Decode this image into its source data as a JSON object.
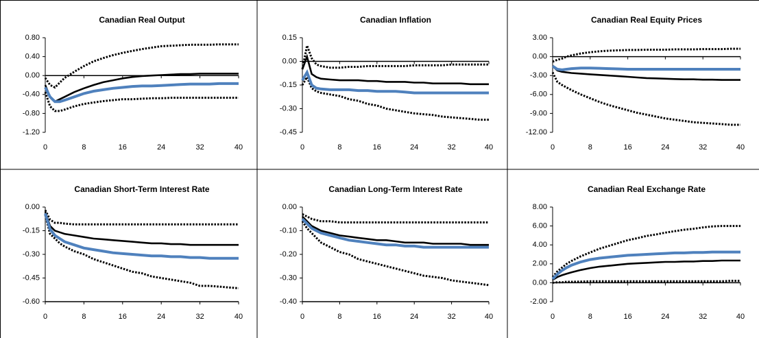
{
  "chart_data": [
    {
      "type": "line",
      "title": "Canadian Real Output",
      "x": [
        0,
        1,
        2,
        3,
        4,
        6,
        8,
        10,
        12,
        14,
        16,
        18,
        20,
        22,
        24,
        26,
        28,
        30,
        32,
        34,
        36,
        38,
        40
      ],
      "xlim": [
        0,
        40
      ],
      "xticks": [
        0,
        8,
        16,
        24,
        32,
        40
      ],
      "ylim": [
        -1.2,
        0.8
      ],
      "yticks": [
        {
          "value": -1.2,
          "label": "-1.20"
        },
        {
          "value": -0.8,
          "label": "-0.80"
        },
        {
          "value": -0.4,
          "label": "-0.40"
        },
        {
          "value": 0,
          "label": "0.00"
        },
        {
          "value": 0.4,
          "label": "0.40"
        },
        {
          "value": 0.8,
          "label": "0.80"
        }
      ],
      "series": [
        {
          "color": "#000000",
          "dash": "dotted",
          "values": [
            -0.05,
            -0.2,
            -0.25,
            -0.15,
            -0.05,
            0.08,
            0.2,
            0.3,
            0.37,
            0.43,
            0.48,
            0.52,
            0.56,
            0.59,
            0.62,
            0.63,
            0.64,
            0.65,
            0.65,
            0.65,
            0.66,
            0.66,
            0.66
          ]
        },
        {
          "color": "#000000",
          "dash": "dotted",
          "values": [
            -0.35,
            -0.65,
            -0.75,
            -0.75,
            -0.72,
            -0.65,
            -0.6,
            -0.57,
            -0.54,
            -0.52,
            -0.5,
            -0.5,
            -0.49,
            -0.48,
            -0.48,
            -0.47,
            -0.47,
            -0.47,
            -0.47,
            -0.47,
            -0.47,
            -0.47,
            -0.47
          ]
        },
        {
          "color": "#000000",
          "dash": "solid",
          "values": [
            -0.2,
            -0.45,
            -0.55,
            -0.5,
            -0.45,
            -0.35,
            -0.27,
            -0.2,
            -0.14,
            -0.1,
            -0.06,
            -0.03,
            -0.01,
            0,
            0.01,
            0.02,
            0.03,
            0.03,
            0.04,
            0.04,
            0.04,
            0.04,
            0.04
          ]
        },
        {
          "color": "#4f81bd",
          "dash": "solid",
          "values": [
            -0.25,
            -0.45,
            -0.55,
            -0.55,
            -0.52,
            -0.45,
            -0.38,
            -0.33,
            -0.3,
            -0.27,
            -0.25,
            -0.23,
            -0.22,
            -0.22,
            -0.21,
            -0.2,
            -0.19,
            -0.18,
            -0.18,
            -0.18,
            -0.17,
            -0.17,
            -0.17
          ]
        }
      ]
    },
    {
      "type": "line",
      "title": "Canadian Inflation",
      "x": [
        0,
        1,
        2,
        3,
        4,
        6,
        8,
        10,
        12,
        14,
        16,
        18,
        20,
        22,
        24,
        26,
        28,
        30,
        32,
        34,
        36,
        38,
        40
      ],
      "xlim": [
        0,
        40
      ],
      "xticks": [
        0,
        8,
        16,
        24,
        32,
        40
      ],
      "ylim": [
        -0.45,
        0.15
      ],
      "yticks": [
        {
          "value": -0.45,
          "label": "-0.45"
        },
        {
          "value": -0.3,
          "label": "-0.30"
        },
        {
          "value": -0.15,
          "label": "-0.15"
        },
        {
          "value": 0,
          "label": "0.00"
        },
        {
          "value": 0.15,
          "label": "0.15"
        }
      ],
      "series": [
        {
          "color": "#000000",
          "dash": "dotted",
          "values": [
            -0.05,
            0.1,
            0.02,
            -0.02,
            -0.03,
            -0.04,
            -0.04,
            -0.035,
            -0.035,
            -0.03,
            -0.03,
            -0.03,
            -0.03,
            -0.03,
            -0.025,
            -0.025,
            -0.025,
            -0.025,
            -0.02,
            -0.02,
            -0.02,
            -0.02,
            -0.02
          ]
        },
        {
          "color": "#000000",
          "dash": "dotted",
          "values": [
            -0.15,
            -0.1,
            -0.17,
            -0.19,
            -0.2,
            -0.21,
            -0.22,
            -0.24,
            -0.25,
            -0.27,
            -0.28,
            -0.3,
            -0.31,
            -0.32,
            -0.33,
            -0.335,
            -0.34,
            -0.35,
            -0.355,
            -0.36,
            -0.365,
            -0.37,
            -0.37
          ]
        },
        {
          "color": "#000000",
          "dash": "solid",
          "values": [
            -0.05,
            0.03,
            -0.08,
            -0.1,
            -0.11,
            -0.115,
            -0.12,
            -0.12,
            -0.12,
            -0.125,
            -0.125,
            -0.13,
            -0.13,
            -0.13,
            -0.135,
            -0.135,
            -0.14,
            -0.14,
            -0.14,
            -0.14,
            -0.145,
            -0.145,
            -0.145
          ]
        },
        {
          "color": "#4f81bd",
          "dash": "solid",
          "values": [
            -0.12,
            -0.07,
            -0.15,
            -0.17,
            -0.175,
            -0.18,
            -0.18,
            -0.18,
            -0.185,
            -0.185,
            -0.19,
            -0.19,
            -0.19,
            -0.195,
            -0.2,
            -0.2,
            -0.2,
            -0.2,
            -0.2,
            -0.2,
            -0.2,
            -0.2,
            -0.2
          ]
        }
      ]
    },
    {
      "type": "line",
      "title": "Canadian Real Equity Prices",
      "x": [
        0,
        1,
        2,
        3,
        4,
        6,
        8,
        10,
        12,
        14,
        16,
        18,
        20,
        22,
        24,
        26,
        28,
        30,
        32,
        34,
        36,
        38,
        40
      ],
      "xlim": [
        0,
        40
      ],
      "xticks": [
        0,
        8,
        16,
        24,
        32,
        40
      ],
      "ylim": [
        -12,
        3
      ],
      "yticks": [
        {
          "value": -12,
          "label": "-12.00"
        },
        {
          "value": -9,
          "label": "-9.00"
        },
        {
          "value": -6,
          "label": "-6.00"
        },
        {
          "value": -3,
          "label": "-3.00"
        },
        {
          "value": 0,
          "label": "0.00"
        },
        {
          "value": 3,
          "label": "3.00"
        }
      ],
      "series": [
        {
          "color": "#000000",
          "dash": "dotted",
          "values": [
            -0.8,
            -0.5,
            -0.3,
            0,
            0.2,
            0.5,
            0.7,
            0.85,
            0.95,
            1.0,
            1.05,
            1.05,
            1.1,
            1.1,
            1.1,
            1.15,
            1.15,
            1.15,
            1.2,
            1.2,
            1.2,
            1.25,
            1.25
          ]
        },
        {
          "color": "#000000",
          "dash": "dotted",
          "values": [
            -2.5,
            -4,
            -4.5,
            -4.9,
            -5.3,
            -6,
            -6.6,
            -7.2,
            -7.7,
            -8.1,
            -8.5,
            -8.9,
            -9.2,
            -9.5,
            -9.8,
            -10,
            -10.2,
            -10.4,
            -10.5,
            -10.6,
            -10.7,
            -10.8,
            -10.8
          ]
        },
        {
          "color": "#000000",
          "dash": "solid",
          "values": [
            -1.5,
            -2.2,
            -2.4,
            -2.5,
            -2.6,
            -2.7,
            -2.8,
            -2.9,
            -3.0,
            -3.1,
            -3.2,
            -3.3,
            -3.4,
            -3.45,
            -3.5,
            -3.55,
            -3.6,
            -3.6,
            -3.65,
            -3.65,
            -3.7,
            -3.7,
            -3.7
          ]
        },
        {
          "color": "#4f81bd",
          "dash": "solid",
          "values": [
            -1.5,
            -2.0,
            -2.1,
            -2.0,
            -1.9,
            -1.8,
            -1.8,
            -1.85,
            -1.9,
            -1.95,
            -2.0,
            -2.0,
            -2.0,
            -2.0,
            -2.0,
            -2.0,
            -2.0,
            -2.0,
            -2.0,
            -2.0,
            -2.0,
            -2.0,
            -2.0
          ]
        }
      ]
    },
    {
      "type": "line",
      "title": "Canadian Short-Term Interest Rate",
      "x": [
        0,
        1,
        2,
        3,
        4,
        6,
        8,
        10,
        12,
        14,
        16,
        18,
        20,
        22,
        24,
        26,
        28,
        30,
        32,
        34,
        36,
        38,
        40
      ],
      "xlim": [
        0,
        40
      ],
      "xticks": [
        0,
        8,
        16,
        24,
        32,
        40
      ],
      "ylim": [
        -0.6,
        0
      ],
      "yticks": [
        {
          "value": -0.6,
          "label": "-0.60"
        },
        {
          "value": -0.45,
          "label": "-0.45"
        },
        {
          "value": -0.3,
          "label": "-0.30"
        },
        {
          "value": -0.15,
          "label": "-0.15"
        },
        {
          "value": 0,
          "label": "0.00"
        }
      ],
      "series": [
        {
          "color": "#000000",
          "dash": "dotted",
          "values": [
            -0.02,
            -0.08,
            -0.1,
            -0.1,
            -0.105,
            -0.11,
            -0.11,
            -0.11,
            -0.11,
            -0.11,
            -0.11,
            -0.11,
            -0.11,
            -0.11,
            -0.11,
            -0.11,
            -0.11,
            -0.11,
            -0.11,
            -0.11,
            -0.11,
            -0.11,
            -0.11
          ]
        },
        {
          "color": "#000000",
          "dash": "dotted",
          "values": [
            -0.05,
            -0.17,
            -0.2,
            -0.23,
            -0.25,
            -0.28,
            -0.3,
            -0.33,
            -0.35,
            -0.37,
            -0.39,
            -0.41,
            -0.42,
            -0.44,
            -0.45,
            -0.46,
            -0.47,
            -0.48,
            -0.5,
            -0.5,
            -0.505,
            -0.51,
            -0.515
          ]
        },
        {
          "color": "#000000",
          "dash": "solid",
          "values": [
            -0.03,
            -0.12,
            -0.15,
            -0.16,
            -0.17,
            -0.18,
            -0.19,
            -0.2,
            -0.205,
            -0.21,
            -0.215,
            -0.22,
            -0.225,
            -0.23,
            -0.23,
            -0.235,
            -0.235,
            -0.24,
            -0.24,
            -0.24,
            -0.24,
            -0.24,
            -0.24
          ]
        },
        {
          "color": "#4f81bd",
          "dash": "solid",
          "values": [
            -0.04,
            -0.14,
            -0.18,
            -0.2,
            -0.22,
            -0.24,
            -0.26,
            -0.27,
            -0.28,
            -0.29,
            -0.295,
            -0.3,
            -0.305,
            -0.31,
            -0.31,
            -0.315,
            -0.315,
            -0.32,
            -0.32,
            -0.325,
            -0.325,
            -0.325,
            -0.325
          ]
        }
      ]
    },
    {
      "type": "line",
      "title": "Canadian Long-Term Interest Rate",
      "x": [
        0,
        1,
        2,
        3,
        4,
        6,
        8,
        10,
        12,
        14,
        16,
        18,
        20,
        22,
        24,
        26,
        28,
        30,
        32,
        34,
        36,
        38,
        40
      ],
      "xlim": [
        0,
        40
      ],
      "xticks": [
        0,
        8,
        16,
        24,
        32,
        40
      ],
      "ylim": [
        -0.4,
        0
      ],
      "yticks": [
        {
          "value": -0.4,
          "label": "-0.40"
        },
        {
          "value": -0.3,
          "label": "-0.30"
        },
        {
          "value": -0.2,
          "label": "-0.20"
        },
        {
          "value": -0.1,
          "label": "-0.10"
        },
        {
          "value": 0,
          "label": "0.00"
        }
      ],
      "series": [
        {
          "color": "#000000",
          "dash": "dotted",
          "values": [
            -0.03,
            -0.04,
            -0.05,
            -0.055,
            -0.06,
            -0.06,
            -0.065,
            -0.065,
            -0.065,
            -0.065,
            -0.065,
            -0.065,
            -0.065,
            -0.065,
            -0.065,
            -0.065,
            -0.065,
            -0.065,
            -0.065,
            -0.065,
            -0.065,
            -0.065,
            -0.065
          ]
        },
        {
          "color": "#000000",
          "dash": "dotted",
          "values": [
            -0.06,
            -0.09,
            -0.11,
            -0.13,
            -0.15,
            -0.17,
            -0.19,
            -0.2,
            -0.22,
            -0.23,
            -0.24,
            -0.25,
            -0.26,
            -0.27,
            -0.28,
            -0.29,
            -0.295,
            -0.3,
            -0.31,
            -0.315,
            -0.32,
            -0.325,
            -0.33
          ]
        },
        {
          "color": "#000000",
          "dash": "solid",
          "values": [
            -0.04,
            -0.06,
            -0.08,
            -0.09,
            -0.1,
            -0.11,
            -0.12,
            -0.125,
            -0.13,
            -0.135,
            -0.14,
            -0.14,
            -0.145,
            -0.15,
            -0.15,
            -0.15,
            -0.155,
            -0.155,
            -0.155,
            -0.155,
            -0.16,
            -0.16,
            -0.16
          ]
        },
        {
          "color": "#4f81bd",
          "dash": "solid",
          "values": [
            -0.05,
            -0.07,
            -0.09,
            -0.1,
            -0.11,
            -0.12,
            -0.13,
            -0.14,
            -0.145,
            -0.15,
            -0.155,
            -0.16,
            -0.16,
            -0.165,
            -0.165,
            -0.17,
            -0.17,
            -0.17,
            -0.17,
            -0.17,
            -0.17,
            -0.17,
            -0.17
          ]
        }
      ]
    },
    {
      "type": "line",
      "title": "Canadian Real Exchange Rate",
      "x": [
        0,
        1,
        2,
        3,
        4,
        6,
        8,
        10,
        12,
        14,
        16,
        18,
        20,
        22,
        24,
        26,
        28,
        30,
        32,
        34,
        36,
        38,
        40
      ],
      "xlim": [
        0,
        40
      ],
      "xticks": [
        0,
        8,
        16,
        24,
        32,
        40
      ],
      "ylim": [
        -2,
        8
      ],
      "yticks": [
        {
          "value": -2,
          "label": "-2.00"
        },
        {
          "value": 0,
          "label": "0.00"
        },
        {
          "value": 2,
          "label": "2.00"
        },
        {
          "value": 4,
          "label": "4.00"
        },
        {
          "value": 6,
          "label": "6.00"
        },
        {
          "value": 8,
          "label": "8.00"
        }
      ],
      "series": [
        {
          "color": "#000000",
          "dash": "dotted",
          "values": [
            0.6,
            1.2,
            1.6,
            2.0,
            2.3,
            2.8,
            3.2,
            3.6,
            3.9,
            4.2,
            4.5,
            4.7,
            4.95,
            5.1,
            5.3,
            5.45,
            5.6,
            5.7,
            5.85,
            5.95,
            6.0,
            6.0,
            6.0
          ]
        },
        {
          "color": "#000000",
          "dash": "dotted",
          "values": [
            0,
            0.05,
            0.05,
            0.1,
            0.1,
            0.12,
            0.15,
            0.15,
            0.15,
            0.15,
            0.15,
            0.15,
            0.15,
            0.15,
            0.15,
            0.15,
            0.15,
            0.15,
            0.15,
            0.15,
            0.15,
            0.2,
            0.2
          ]
        },
        {
          "color": "#000000",
          "dash": "solid",
          "values": [
            0.3,
            0.6,
            0.8,
            0.95,
            1.1,
            1.35,
            1.55,
            1.7,
            1.8,
            1.9,
            2.0,
            2.05,
            2.1,
            2.15,
            2.2,
            2.2,
            2.25,
            2.25,
            2.3,
            2.3,
            2.35,
            2.35,
            2.35
          ]
        },
        {
          "color": "#4f81bd",
          "dash": "solid",
          "values": [
            0.4,
            0.9,
            1.3,
            1.6,
            1.85,
            2.2,
            2.45,
            2.6,
            2.7,
            2.8,
            2.9,
            2.95,
            3.0,
            3.05,
            3.1,
            3.15,
            3.15,
            3.2,
            3.2,
            3.25,
            3.25,
            3.25,
            3.25
          ]
        }
      ]
    }
  ]
}
